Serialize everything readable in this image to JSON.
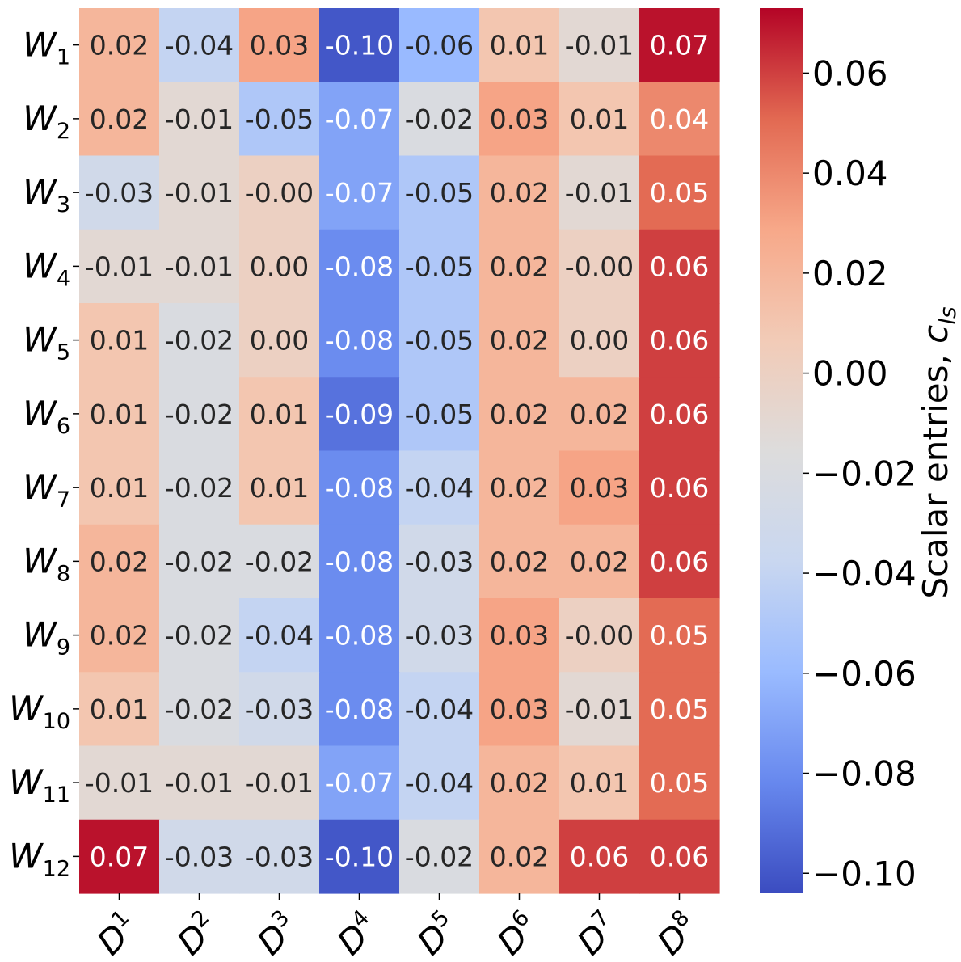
{
  "chart_data": {
    "type": "heatmap",
    "title": "",
    "row_labels": [
      {
        "base": "W",
        "sub": "1"
      },
      {
        "base": "W",
        "sub": "2"
      },
      {
        "base": "W",
        "sub": "3"
      },
      {
        "base": "W",
        "sub": "4"
      },
      {
        "base": "W",
        "sub": "5"
      },
      {
        "base": "W",
        "sub": "6"
      },
      {
        "base": "W",
        "sub": "7"
      },
      {
        "base": "W",
        "sub": "8"
      },
      {
        "base": "W",
        "sub": "9"
      },
      {
        "base": "W",
        "sub": "10"
      },
      {
        "base": "W",
        "sub": "11"
      },
      {
        "base": "W",
        "sub": "12"
      }
    ],
    "col_labels": [
      {
        "base": "D",
        "sup": "1"
      },
      {
        "base": "D",
        "sup": "2"
      },
      {
        "base": "D",
        "sup": "3"
      },
      {
        "base": "D",
        "sup": "4"
      },
      {
        "base": "D",
        "sup": "5"
      },
      {
        "base": "D",
        "sup": "6"
      },
      {
        "base": "D",
        "sup": "7"
      },
      {
        "base": "D",
        "sup": "8"
      }
    ],
    "values": [
      [
        0.02,
        -0.04,
        0.03,
        -0.1,
        -0.06,
        0.01,
        -0.01,
        0.07
      ],
      [
        0.02,
        -0.01,
        -0.05,
        -0.07,
        -0.02,
        0.03,
        0.01,
        0.04
      ],
      [
        -0.03,
        -0.01,
        -0.0,
        -0.07,
        -0.05,
        0.02,
        -0.01,
        0.05
      ],
      [
        -0.01,
        -0.01,
        0.0,
        -0.08,
        -0.05,
        0.02,
        -0.0,
        0.06
      ],
      [
        0.01,
        -0.02,
        0.0,
        -0.08,
        -0.05,
        0.02,
        0.0,
        0.06
      ],
      [
        0.01,
        -0.02,
        0.01,
        -0.09,
        -0.05,
        0.02,
        0.02,
        0.06
      ],
      [
        0.01,
        -0.02,
        0.01,
        -0.08,
        -0.04,
        0.02,
        0.03,
        0.06
      ],
      [
        0.02,
        -0.02,
        -0.02,
        -0.08,
        -0.03,
        0.02,
        0.02,
        0.06
      ],
      [
        0.02,
        -0.02,
        -0.04,
        -0.08,
        -0.03,
        0.03,
        -0.0,
        0.05
      ],
      [
        0.01,
        -0.02,
        -0.03,
        -0.08,
        -0.04,
        0.03,
        -0.01,
        0.05
      ],
      [
        -0.01,
        -0.01,
        -0.01,
        -0.07,
        -0.04,
        0.02,
        0.01,
        0.05
      ],
      [
        0.07,
        -0.03,
        -0.03,
        -0.1,
        -0.02,
        0.02,
        0.06,
        0.06
      ]
    ],
    "display_labels": [
      [
        "0.02",
        "-0.04",
        "0.03",
        "-0.10",
        "-0.06",
        "0.01",
        "-0.01",
        "0.07"
      ],
      [
        "0.02",
        "-0.01",
        "-0.05",
        "-0.07",
        "-0.02",
        "0.03",
        "0.01",
        "0.04"
      ],
      [
        "-0.03",
        "-0.01",
        "-0.00",
        "-0.07",
        "-0.05",
        "0.02",
        "-0.01",
        "0.05"
      ],
      [
        "-0.01",
        "-0.01",
        "0.00",
        "-0.08",
        "-0.05",
        "0.02",
        "-0.00",
        "0.06"
      ],
      [
        "0.01",
        "-0.02",
        "0.00",
        "-0.08",
        "-0.05",
        "0.02",
        "0.00",
        "0.06"
      ],
      [
        "0.01",
        "-0.02",
        "0.01",
        "-0.09",
        "-0.05",
        "0.02",
        "0.02",
        "0.06"
      ],
      [
        "0.01",
        "-0.02",
        "0.01",
        "-0.08",
        "-0.04",
        "0.02",
        "0.03",
        "0.06"
      ],
      [
        "0.02",
        "-0.02",
        "-0.02",
        "-0.08",
        "-0.03",
        "0.02",
        "0.02",
        "0.06"
      ],
      [
        "0.02",
        "-0.02",
        "-0.04",
        "-0.08",
        "-0.03",
        "0.03",
        "-0.00",
        "0.05"
      ],
      [
        "0.01",
        "-0.02",
        "-0.03",
        "-0.08",
        "-0.04",
        "0.03",
        "-0.01",
        "0.05"
      ],
      [
        "-0.01",
        "-0.01",
        "-0.01",
        "-0.07",
        "-0.04",
        "0.02",
        "0.01",
        "0.05"
      ],
      [
        "0.07",
        "-0.03",
        "-0.03",
        "-0.10",
        "-0.02",
        "0.02",
        "0.06",
        "0.06"
      ]
    ],
    "colormap": "coolwarm",
    "colormap_stops": [
      "#3b4cc0",
      "#6788ee",
      "#9abbff",
      "#c9d7f0",
      "#dddcdc",
      "#f2cbb7",
      "#f7a889",
      "#e26952",
      "#b40426"
    ],
    "vmin": -0.104,
    "vmax": 0.073,
    "colorbar": {
      "label_prefix": "Scalar entries, ",
      "label_var": "c",
      "label_sub": "ls",
      "ticks": [
        0.06,
        0.04,
        0.02,
        0.0,
        -0.02,
        -0.04,
        -0.06,
        -0.08,
        -0.1
      ],
      "tick_labels": [
        "0.06",
        "0.04",
        "0.02",
        "0.00",
        "−0.02",
        "−0.04",
        "−0.06",
        "−0.08",
        "−0.10"
      ]
    },
    "text_colors": {
      "dark": "#262626",
      "light": "#ffffff"
    }
  }
}
